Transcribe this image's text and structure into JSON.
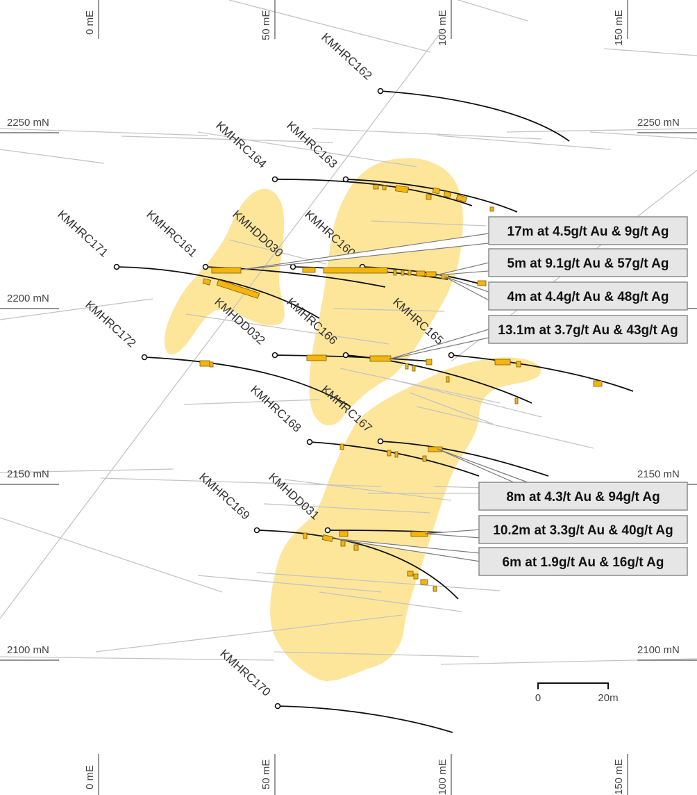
{
  "grid": {
    "easting_labels": [
      "0 mE",
      "50 mE",
      "100 mE",
      "150 mE"
    ],
    "northing_labels": [
      "2250 mN",
      "2200 mN",
      "2150 mN",
      "2100 mN"
    ]
  },
  "holes": [
    {
      "id": "KMHRC162",
      "label": "KMHRC162"
    },
    {
      "id": "KMHRC163",
      "label": "KMHRC163"
    },
    {
      "id": "KMHRC164",
      "label": "KMHRC164"
    },
    {
      "id": "KMHRC171",
      "label": "KMHRC171"
    },
    {
      "id": "KMHRC161",
      "label": "KMHRC161"
    },
    {
      "id": "KMHDD030",
      "label": "KMHDD030"
    },
    {
      "id": "KMHRC160",
      "label": "KMHRC160"
    },
    {
      "id": "KMHRC172",
      "label": "KMHRC172"
    },
    {
      "id": "KMHDD032",
      "label": "KMHDD032"
    },
    {
      "id": "KMHRC166",
      "label": "KMHRC166"
    },
    {
      "id": "KMHRC165",
      "label": "KMHRC165"
    },
    {
      "id": "KMHRC168",
      "label": "KMHRC168"
    },
    {
      "id": "KMHRC167",
      "label": "KMHRC167"
    },
    {
      "id": "KMHRC169",
      "label": "KMHRC169"
    },
    {
      "id": "KMHDD031",
      "label": "KMHDD031"
    },
    {
      "id": "KMHRC170",
      "label": "KMHRC170"
    }
  ],
  "intercepts": [
    "17m at 4.5g/t Au & 9g/t Ag",
    "5m at 9.1g/t Au & 57g/t Ag",
    "4m at 4.4g/t Au & 48g/t Ag",
    "13.1m at 3.7g/t Au & 43g/t Ag",
    "8m at 4.3/t Au & 94g/t Ag",
    "10.2m at 3.3g/t Au & 40g/t Ag",
    "6m at 1.9g/t Au & 16g/t Ag"
  ],
  "scale_bar": {
    "start": "0",
    "end": "20m"
  },
  "colors": {
    "zone_fill": "#fde69a",
    "intercept_fill": "#f5b50f",
    "trace": "#111111",
    "old_trace": "#c4c4c4",
    "callout_fill": "#e6e6e6"
  }
}
